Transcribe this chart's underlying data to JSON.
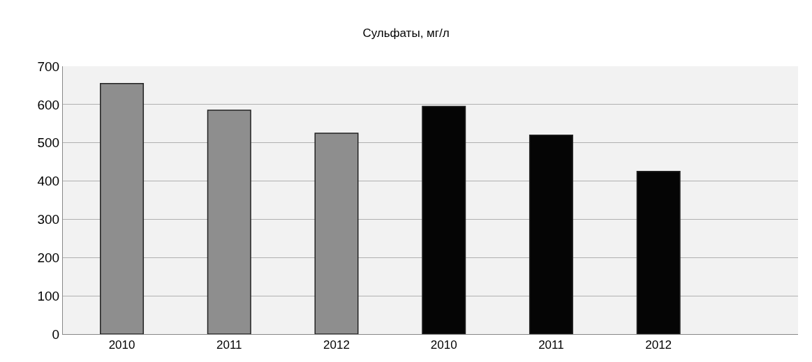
{
  "chart_data": {
    "type": "bar",
    "title": "Сульфаты, мг/л",
    "categories": [
      "2010",
      "2011",
      "2012",
      "2010",
      "2011",
      "2012"
    ],
    "values": [
      655,
      585,
      525,
      595,
      520,
      425
    ],
    "colors": [
      "#8e8e8e",
      "#8e8e8e",
      "#8e8e8e",
      "#050505",
      "#050505",
      "#050505"
    ],
    "ylim": [
      0,
      700
    ],
    "yticks": [
      0,
      100,
      200,
      300,
      400,
      500,
      600,
      700
    ],
    "grid": "y"
  }
}
